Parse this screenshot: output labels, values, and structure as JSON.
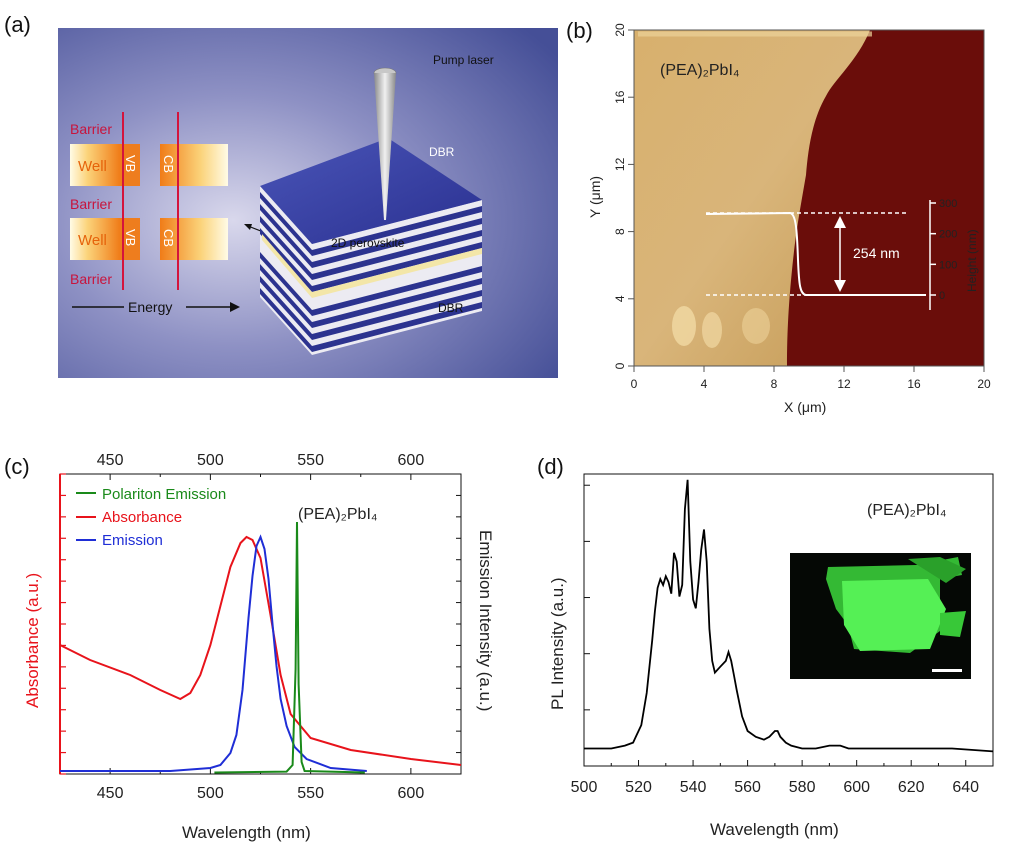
{
  "panels": {
    "a": {
      "label": "(a)",
      "barrier1": "Barrier",
      "barrier2": "Barrier",
      "barrier3": "Barrier",
      "well1": "Well",
      "well2": "Well",
      "vb1": "VB",
      "vb2": "VB",
      "cb1": "CB",
      "cb2": "CB",
      "energy": "Energy",
      "pump_laser": "Pump laser",
      "dbr_top": "DBR",
      "dbr_bottom": "DBR",
      "perovskite": "2D perovskite",
      "colors": {
        "bg": "#5f6aa6",
        "barrier": "#c8143c",
        "well": "#f28a2a",
        "dbr": "#2c338f"
      }
    },
    "b": {
      "label": "(b)",
      "sample": "(PEA)₂PbI₄",
      "xlabel": "X (μm)",
      "ylabel": "Y (μm)",
      "y2label": "Height (nm)",
      "annotation": "254 nm",
      "xticks": [
        "0",
        "4",
        "8",
        "12",
        "16",
        "20"
      ],
      "yticks": [
        "0",
        "4",
        "8",
        "12",
        "16",
        "20"
      ],
      "hticks": [
        "0",
        "100",
        "200",
        "300"
      ]
    },
    "c": {
      "label": "(c)",
      "sample": "(PEA)₂PbI₄",
      "legend": [
        {
          "label": "Polariton Emission",
          "color": "#1a8a1a"
        },
        {
          "label": "Absorbance",
          "color": "#e8131b"
        },
        {
          "label": "Emission",
          "color": "#1f2ed6"
        }
      ],
      "xlabel": "Wavelength (nm)",
      "ylabel_left": "Absorbance (a.u.)",
      "ylabel_right": "Emission Intensity (a.u.)",
      "xticks_bottom": [
        "450",
        "500",
        "550",
        "600"
      ],
      "xticks_top": [
        "450",
        "500",
        "550",
        "600"
      ]
    },
    "d": {
      "label": "(d)",
      "sample": "(PEA)₂PbI₄",
      "xlabel": "Wavelength (nm)",
      "ylabel": "PL Intensity (a.u.)",
      "xticks": [
        "500",
        "520",
        "540",
        "560",
        "580",
        "600",
        "620",
        "640"
      ]
    }
  },
  "chart_data": [
    {
      "type": "line",
      "title": "",
      "panel": "c",
      "xlabel": "Wavelength (nm)",
      "ylabel": "Absorbance (a.u.)",
      "xlim": [
        425,
        625
      ],
      "ylim": [
        0,
        1
      ],
      "series": [
        {
          "name": "Absorbance",
          "color": "#e8131b",
          "x": [
            425,
            440,
            460,
            475,
            485,
            490,
            495,
            500,
            505,
            510,
            515,
            518,
            521,
            525,
            530,
            535,
            540,
            550,
            570,
            600,
            625
          ],
          "y": [
            0.43,
            0.38,
            0.33,
            0.28,
            0.25,
            0.27,
            0.33,
            0.43,
            0.56,
            0.69,
            0.77,
            0.79,
            0.78,
            0.72,
            0.53,
            0.33,
            0.2,
            0.12,
            0.08,
            0.05,
            0.03
          ]
        },
        {
          "name": "Emission",
          "color": "#1f2ed6",
          "x": [
            425,
            480,
            500,
            505,
            510,
            513,
            516,
            519,
            521,
            523,
            525,
            527,
            529,
            531,
            533,
            535,
            538,
            542,
            548,
            560,
            578
          ],
          "y": [
            0.01,
            0.01,
            0.02,
            0.03,
            0.07,
            0.13,
            0.28,
            0.52,
            0.66,
            0.76,
            0.79,
            0.75,
            0.65,
            0.5,
            0.36,
            0.25,
            0.16,
            0.09,
            0.05,
            0.02,
            0.01
          ]
        },
        {
          "name": "Polariton Emission",
          "color": "#1a8a1a",
          "x": [
            502,
            538,
            541,
            542.5,
            543.2,
            544,
            545.5,
            547,
            577
          ],
          "y": [
            0.005,
            0.008,
            0.03,
            0.35,
            0.84,
            0.3,
            0.04,
            0.01,
            0.005
          ]
        }
      ]
    },
    {
      "type": "line",
      "title": "",
      "panel": "d",
      "xlabel": "Wavelength (nm)",
      "ylabel": "PL Intensity (a.u.)",
      "xlim": [
        500,
        650
      ],
      "ylim": [
        0,
        1
      ],
      "series": [
        {
          "name": "PL",
          "color": "#000000",
          "x": [
            500,
            510,
            515,
            518,
            521,
            523,
            525,
            526,
            527,
            528,
            529,
            530,
            531,
            532,
            533,
            534,
            535,
            536,
            537,
            538,
            539,
            540,
            541,
            542,
            543,
            544,
            545,
            546,
            547,
            548,
            550,
            552,
            553,
            554,
            555,
            556,
            558,
            560,
            563,
            566,
            568,
            570,
            571,
            572,
            574,
            576,
            580,
            585,
            590,
            594,
            597,
            600,
            605,
            615,
            625,
            635,
            650
          ],
          "y": [
            0.06,
            0.06,
            0.07,
            0.08,
            0.14,
            0.25,
            0.43,
            0.53,
            0.61,
            0.64,
            0.62,
            0.65,
            0.63,
            0.59,
            0.73,
            0.7,
            0.58,
            0.62,
            0.88,
            0.98,
            0.7,
            0.57,
            0.54,
            0.63,
            0.74,
            0.81,
            0.7,
            0.47,
            0.36,
            0.32,
            0.34,
            0.36,
            0.39,
            0.36,
            0.31,
            0.26,
            0.17,
            0.12,
            0.1,
            0.09,
            0.1,
            0.12,
            0.12,
            0.1,
            0.08,
            0.07,
            0.06,
            0.06,
            0.07,
            0.07,
            0.06,
            0.06,
            0.06,
            0.06,
            0.06,
            0.06,
            0.05
          ]
        }
      ]
    }
  ]
}
